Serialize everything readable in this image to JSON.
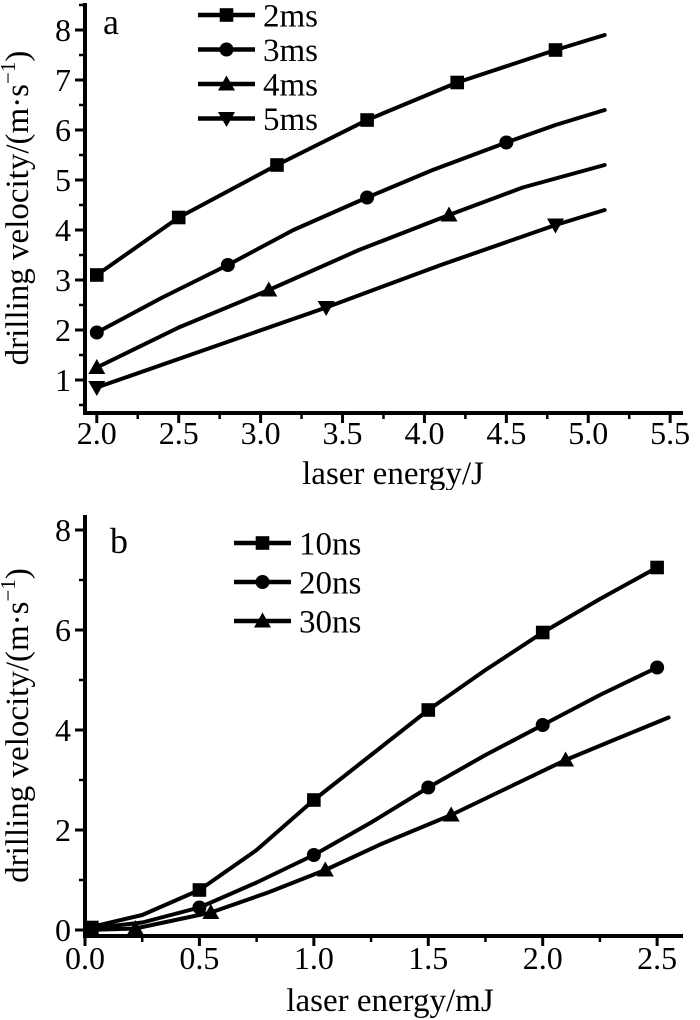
{
  "figure": {
    "background": "#ffffff",
    "ink": "#000000",
    "description": "Two stacked line charts of drilling velocity versus laser energy"
  },
  "chart_data": [
    {
      "type": "line",
      "panel_label": "a",
      "xlabel": "laser energy/J",
      "ylabel": {
        "pre": "drilling velocity/(m·s",
        "sup": "−1",
        "post": ")"
      },
      "xlim": [
        1.928,
        5.56
      ],
      "ylim": [
        0.34,
        8.54
      ],
      "grid": false,
      "legend_position": "upper-left-inside",
      "x_major": {
        "values": [
          2.0,
          2.5,
          3.0,
          3.5,
          4.0,
          4.5,
          5.0,
          5.5
        ],
        "labels": [
          "2.0",
          "2.5",
          "3.0",
          "3.5",
          "4.0",
          "4.5",
          "5.0",
          "5.5"
        ]
      },
      "x_minor": [
        2.25,
        2.75,
        3.25,
        3.75,
        4.25,
        4.75,
        5.25
      ],
      "y_major": {
        "values": [
          1,
          2,
          3,
          4,
          5,
          6,
          7,
          8
        ],
        "labels": [
          "1",
          "2",
          "3",
          "4",
          "5",
          "6",
          "7",
          "8"
        ]
      },
      "y_minor": [
        0.5,
        1.5,
        2.5,
        3.5,
        4.5,
        5.5,
        6.5,
        7.5,
        8.5
      ],
      "series": [
        {
          "name": "2ms",
          "marker": "square",
          "marker_x": [
            2.0,
            2.5,
            3.1,
            3.65,
            4.2,
            4.8
          ],
          "marker_y": [
            3.1,
            4.25,
            5.3,
            6.2,
            6.95,
            7.6
          ],
          "line_x": [
            2.0,
            2.5,
            3.1,
            3.65,
            4.2,
            4.8,
            5.1
          ],
          "line_y": [
            3.1,
            4.25,
            5.3,
            6.2,
            6.95,
            7.6,
            7.9
          ]
        },
        {
          "name": "3ms",
          "marker": "circle",
          "marker_x": [
            2.0,
            2.8,
            3.65,
            4.5
          ],
          "marker_y": [
            1.95,
            3.3,
            4.65,
            5.75
          ],
          "line_x": [
            2.0,
            2.4,
            2.8,
            3.2,
            3.65,
            4.05,
            4.5,
            4.8,
            5.1
          ],
          "line_y": [
            1.95,
            2.65,
            3.3,
            4.0,
            4.65,
            5.2,
            5.75,
            6.1,
            6.4
          ]
        },
        {
          "name": "4ms",
          "marker": "triangle-up",
          "marker_x": [
            2.0,
            3.05,
            4.15
          ],
          "marker_y": [
            1.25,
            2.8,
            4.3
          ],
          "line_x": [
            2.0,
            2.5,
            3.05,
            3.6,
            4.15,
            4.6,
            5.1
          ],
          "line_y": [
            1.25,
            2.05,
            2.8,
            3.6,
            4.3,
            4.85,
            5.3
          ]
        },
        {
          "name": "5ms",
          "marker": "triangle-down",
          "marker_x": [
            2.0,
            3.4,
            4.8
          ],
          "marker_y": [
            0.85,
            2.45,
            4.1
          ],
          "line_x": [
            2.0,
            2.7,
            3.4,
            4.1,
            4.8,
            5.1
          ],
          "line_y": [
            0.85,
            1.65,
            2.45,
            3.3,
            4.1,
            4.4
          ]
        }
      ]
    },
    {
      "type": "line",
      "panel_label": "b",
      "xlabel": "laser energy/mJ",
      "ylabel": {
        "pre": "drilling velocity/(m·s",
        "sup": "−1",
        "post": ")"
      },
      "xlim": [
        0.0,
        2.6
      ],
      "ylim": [
        -0.12,
        8.3
      ],
      "grid": false,
      "legend_position": "upper-middle-inside",
      "x_major": {
        "values": [
          0.0,
          0.5,
          1.0,
          1.5,
          2.0,
          2.5
        ],
        "labels": [
          "0.0",
          "0.5",
          "1.0",
          "1.5",
          "2.0",
          "2.5"
        ]
      },
      "x_minor": [
        0.25,
        0.75,
        1.25,
        1.75,
        2.25
      ],
      "y_major": {
        "values": [
          0,
          2,
          4,
          6,
          8
        ],
        "labels": [
          "0",
          "2",
          "4",
          "6",
          "8"
        ]
      },
      "y_minor": [
        1,
        3,
        5,
        7
      ],
      "series": [
        {
          "name": "10ns",
          "marker": "square",
          "marker_x": [
            0.03,
            0.5,
            1.0,
            1.5,
            2.0,
            2.5
          ],
          "marker_y": [
            0.05,
            0.8,
            2.6,
            4.4,
            5.95,
            7.25
          ],
          "line_x": [
            0.0,
            0.25,
            0.5,
            0.75,
            1.0,
            1.25,
            1.5,
            1.75,
            2.0,
            2.25,
            2.5
          ],
          "line_y": [
            0.03,
            0.3,
            0.8,
            1.6,
            2.6,
            3.5,
            4.4,
            5.2,
            5.95,
            6.62,
            7.25
          ]
        },
        {
          "name": "20ns",
          "marker": "circle",
          "marker_x": [
            0.5,
            1.0,
            1.5,
            2.0,
            2.5
          ],
          "marker_y": [
            0.45,
            1.5,
            2.85,
            4.1,
            5.25
          ],
          "line_x": [
            0.0,
            0.25,
            0.5,
            0.75,
            1.0,
            1.25,
            1.5,
            1.75,
            2.0,
            2.25,
            2.5
          ],
          "line_y": [
            0.02,
            0.15,
            0.45,
            0.95,
            1.5,
            2.15,
            2.85,
            3.5,
            4.1,
            4.7,
            5.25
          ]
        },
        {
          "name": "30ns",
          "marker": "triangle-up",
          "marker_x": [
            0.22,
            0.55,
            1.05,
            1.6,
            2.1
          ],
          "marker_y": [
            0.03,
            0.35,
            1.2,
            2.3,
            3.4
          ],
          "line_x": [
            0.0,
            0.22,
            0.55,
            0.8,
            1.05,
            1.3,
            1.6,
            1.85,
            2.1,
            2.3,
            2.55
          ],
          "line_y": [
            0.0,
            0.03,
            0.35,
            0.75,
            1.2,
            1.73,
            2.3,
            2.85,
            3.4,
            3.78,
            4.25
          ]
        }
      ]
    }
  ]
}
